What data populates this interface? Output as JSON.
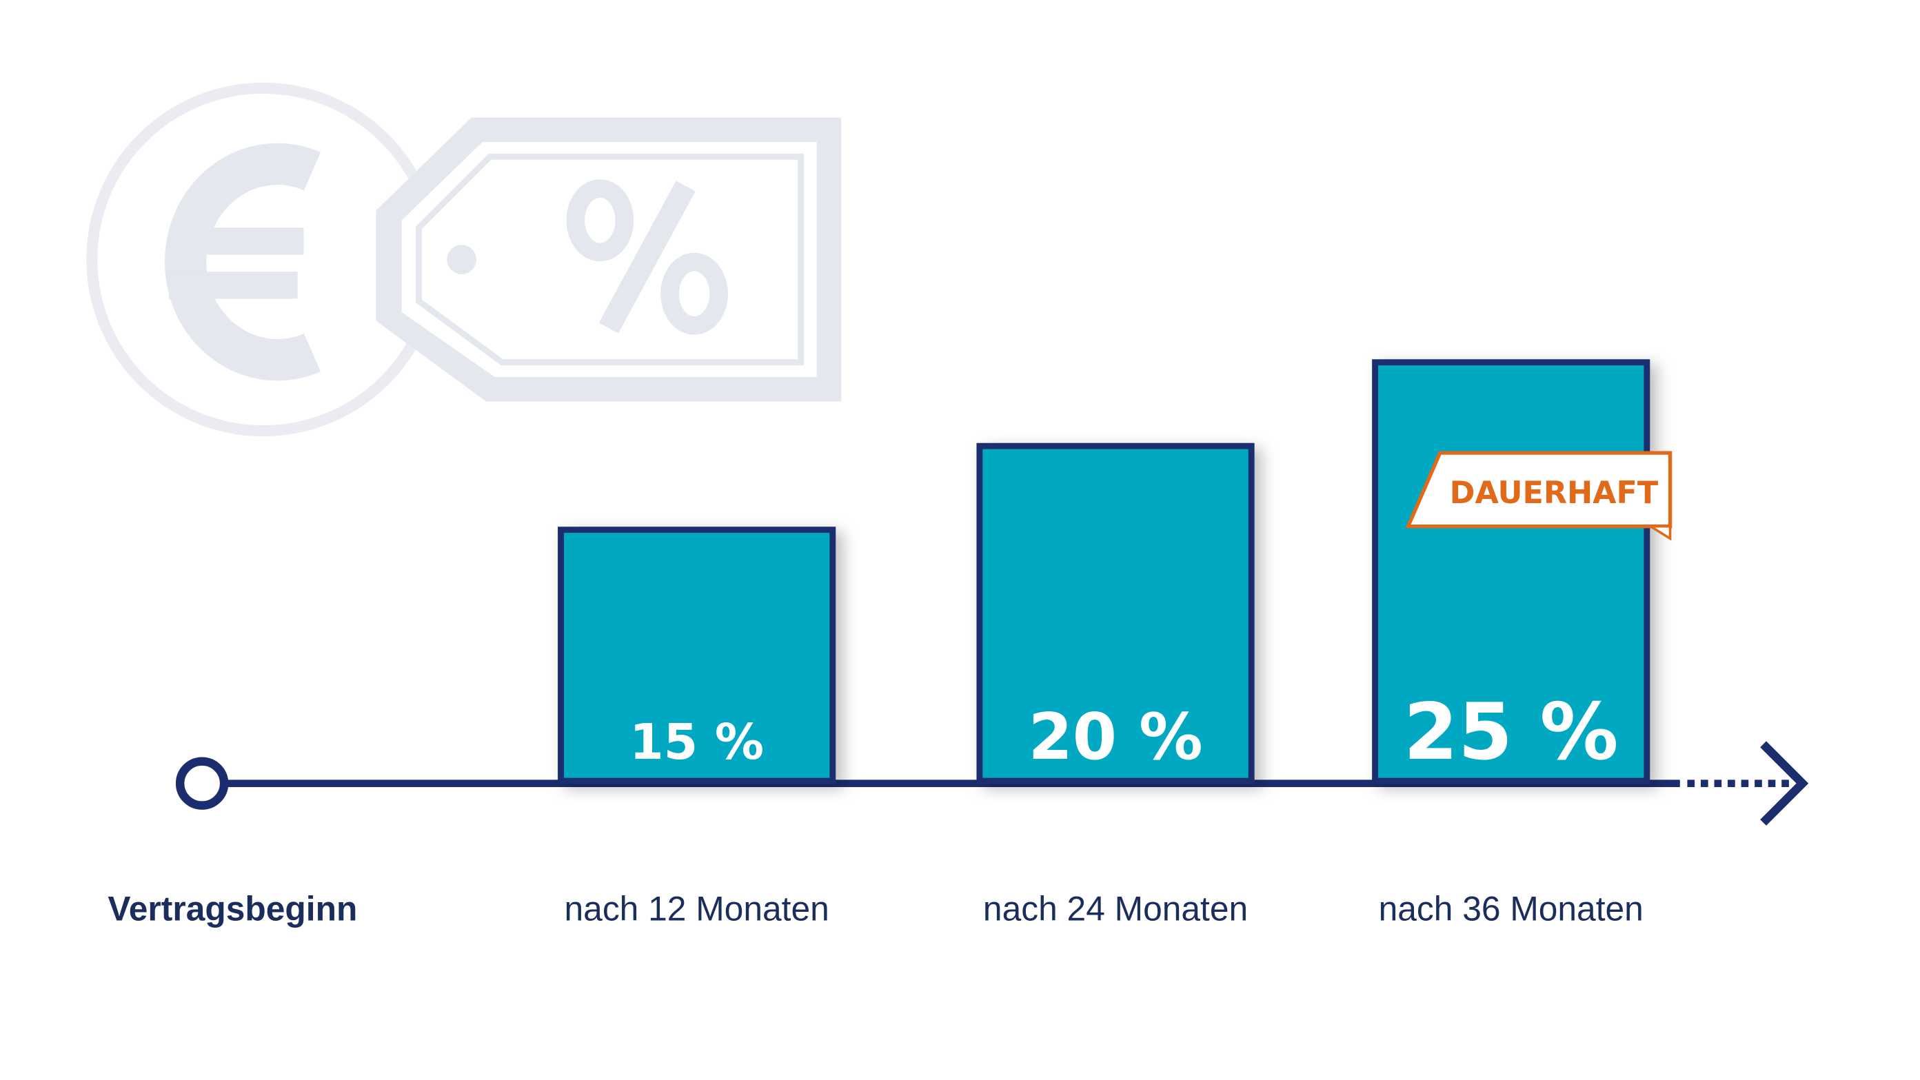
{
  "chart_data": {
    "type": "bar",
    "start_label": "Vertragsbeginn",
    "categories": [
      "nach 12 Monaten",
      "nach 24 Monaten",
      "nach 36 Monaten"
    ],
    "values": [
      15,
      20,
      25
    ],
    "value_labels": [
      "15 %",
      "20 %",
      "25 %"
    ],
    "annotation": "DAUERHAFT",
    "color": "#00a8c2"
  }
}
